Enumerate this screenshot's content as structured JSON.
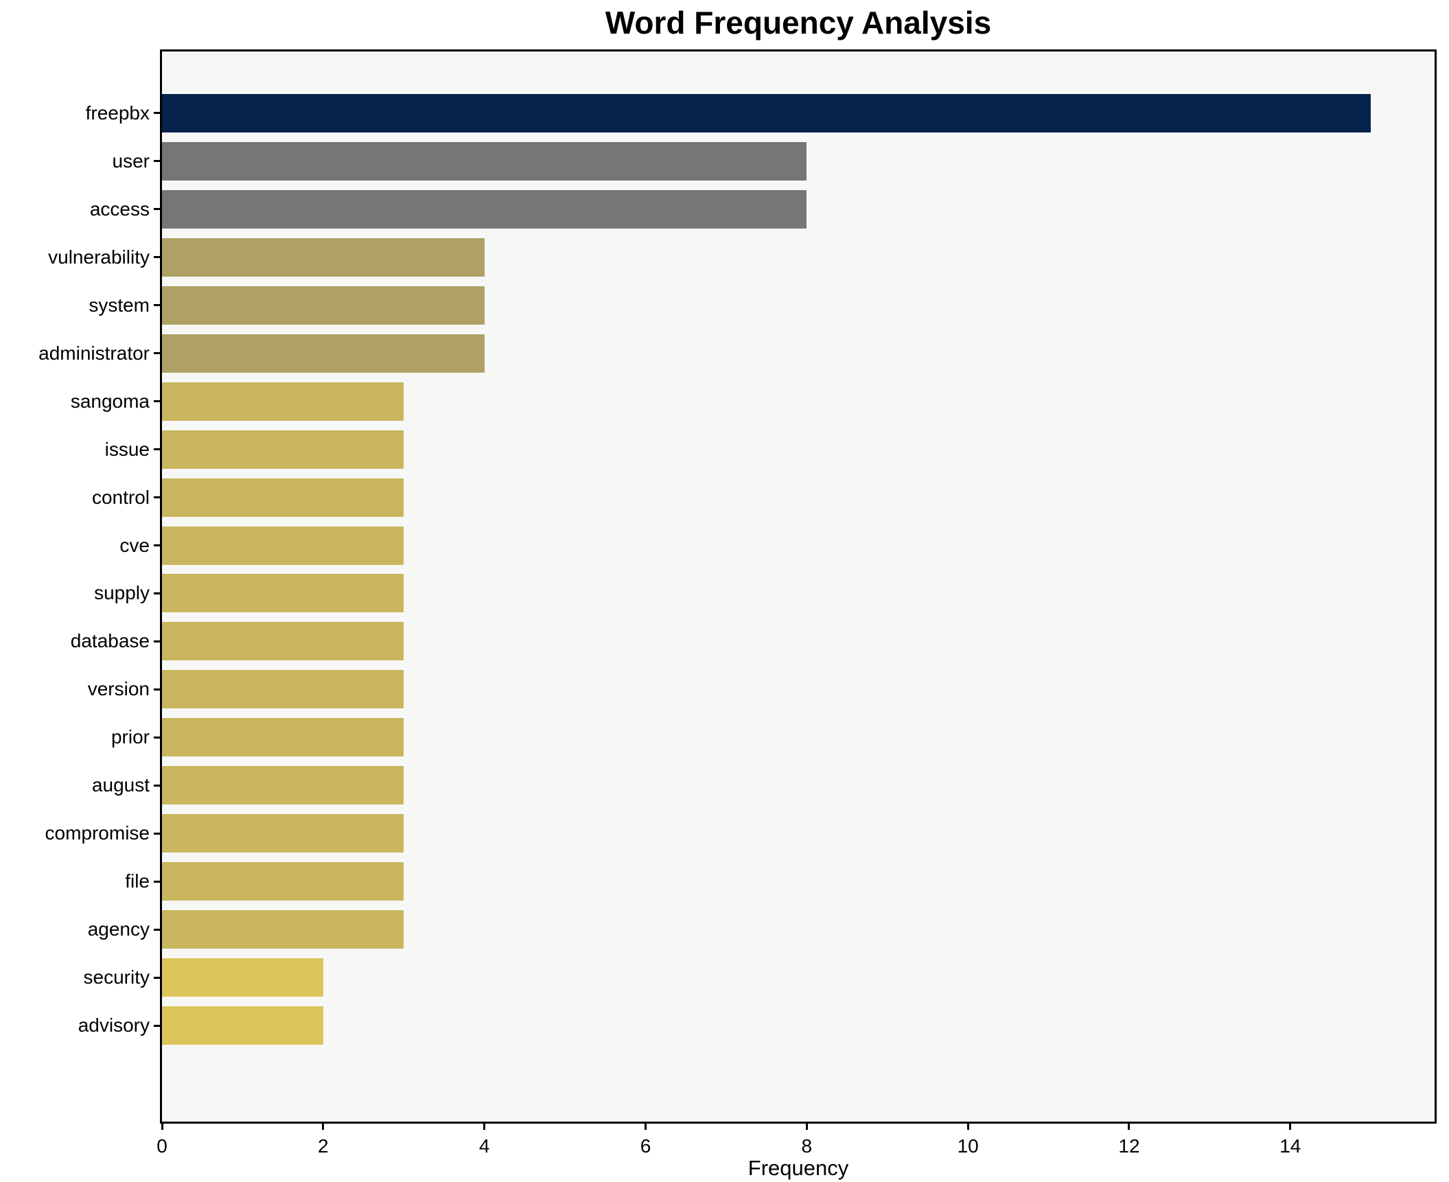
{
  "chart_data": {
    "type": "bar",
    "orientation": "horizontal",
    "title": "Word Frequency Analysis",
    "xlabel": "Frequency",
    "ylabel": "",
    "categories": [
      "freepbx",
      "user",
      "access",
      "vulnerability",
      "system",
      "administrator",
      "sangoma",
      "issue",
      "control",
      "cve",
      "supply",
      "database",
      "version",
      "prior",
      "august",
      "compromise",
      "file",
      "agency",
      "security",
      "advisory"
    ],
    "values": [
      15,
      8,
      8,
      4,
      4,
      4,
      3,
      3,
      3,
      3,
      3,
      3,
      3,
      3,
      3,
      3,
      3,
      3,
      2,
      2
    ],
    "bar_colors": [
      "#05224a",
      "#767675",
      "#767675",
      "#afa166",
      "#afa166",
      "#afa166",
      "#c9b65e",
      "#c9b65e",
      "#c9b65e",
      "#c9b65e",
      "#c9b65e",
      "#c9b65e",
      "#c9b65e",
      "#c9b65e",
      "#c9b65e",
      "#c9b65e",
      "#c9b65e",
      "#c9b65e",
      "#dcc65a",
      "#dcc65a"
    ],
    "xticks": [
      "0",
      "2",
      "4",
      "6",
      "8",
      "10",
      "12",
      "14"
    ],
    "xtick_values": [
      0,
      2,
      4,
      6,
      8,
      10,
      12,
      14
    ],
    "xlim": [
      0,
      15.79
    ],
    "grid": false,
    "legend": null,
    "colors": {
      "figure_background": "#ffffff",
      "axes_background": "#f7f7f6",
      "spine": "#000000",
      "text": "#000000"
    }
  }
}
